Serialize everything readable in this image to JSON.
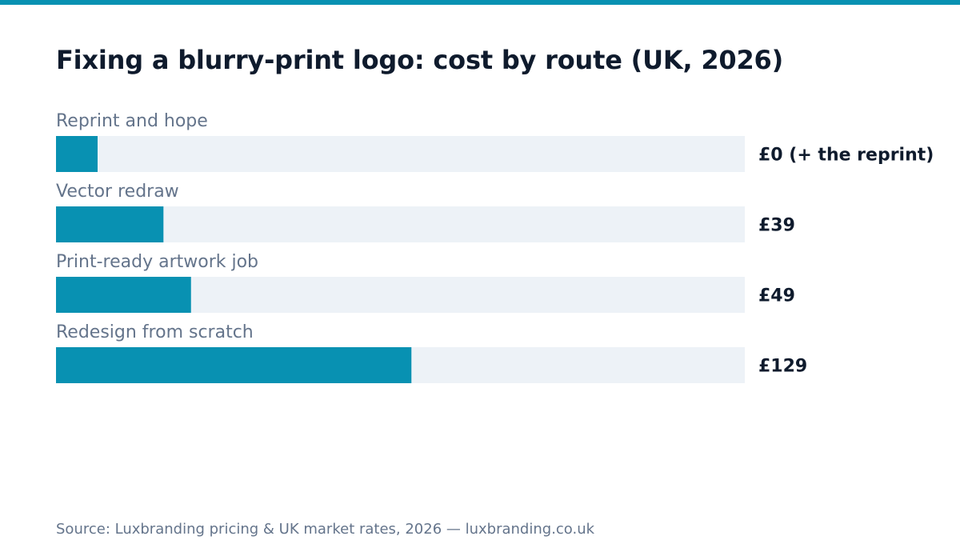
{
  "colors": {
    "accent": "#0891b2",
    "track": "#edf2f7",
    "title": "#0f1b2d",
    "muted": "#64748b"
  },
  "chart_data": {
    "type": "bar",
    "orientation": "horizontal",
    "title": "Fixing a blurry-print logo: cost by route (UK, 2026)",
    "categories": [
      "Reprint and hope",
      "Vector redraw",
      "Print-ready artwork job",
      "Redesign from scratch"
    ],
    "values": [
      0,
      39,
      49,
      129
    ],
    "value_labels": [
      "£0 (+ the reprint)",
      "£39",
      "£49",
      "£129"
    ],
    "unit": "£",
    "xlim": [
      0,
      250
    ],
    "grid": false,
    "legend": "none"
  },
  "source": "Source: Luxbranding pricing & UK market rates, 2026 — luxbranding.co.uk"
}
